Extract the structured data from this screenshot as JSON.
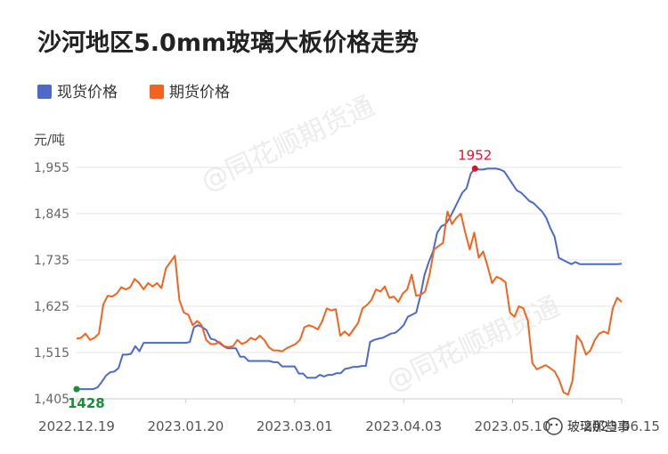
{
  "watermark": "@同花顺期货通",
  "brand": "玻璃那些事",
  "chart_data": {
    "type": "line",
    "title": "沙河地区5.0mm玻璃大板价格走势",
    "ylabel": "元/吨",
    "ylim": [
      1405,
      1955
    ],
    "yticks": [
      "1,955",
      "1,845",
      "1,735",
      "1,625",
      "1,515",
      "1,405"
    ],
    "ytick_values": [
      1955,
      1845,
      1735,
      1625,
      1515,
      1405
    ],
    "xticks": [
      "2022.12.19",
      "2023.01.20",
      "2023.03.01",
      "2023.04.03",
      "2023.05.10",
      "2023.06.15"
    ],
    "grid": true,
    "legend": "top-left",
    "series": [
      {
        "name": "现货价格",
        "color": "#4e6ac8",
        "values": [
          1428,
          1428,
          1428,
          1428,
          1428,
          1432,
          1445,
          1460,
          1468,
          1470,
          1478,
          1510,
          1510,
          1512,
          1530,
          1518,
          1538,
          1538,
          1538,
          1538,
          1538,
          1538,
          1538,
          1538,
          1538,
          1538,
          1538,
          1540,
          1575,
          1580,
          1575,
          1568,
          1548,
          1545,
          1538,
          1530,
          1525,
          1525,
          1525,
          1505,
          1505,
          1495,
          1495,
          1495,
          1495,
          1495,
          1495,
          1492,
          1492,
          1482,
          1482,
          1482,
          1482,
          1465,
          1465,
          1455,
          1455,
          1455,
          1462,
          1458,
          1462,
          1462,
          1466,
          1466,
          1476,
          1478,
          1481,
          1481,
          1483,
          1483,
          1540,
          1545,
          1548,
          1550,
          1555,
          1560,
          1562,
          1570,
          1580,
          1600,
          1605,
          1610,
          1650,
          1700,
          1730,
          1755,
          1800,
          1815,
          1820,
          1835,
          1855,
          1875,
          1895,
          1905,
          1940,
          1952,
          1950,
          1950,
          1952,
          1952,
          1952,
          1950,
          1945,
          1930,
          1915,
          1900,
          1895,
          1885,
          1875,
          1870,
          1860,
          1850,
          1835,
          1810,
          1790,
          1740,
          1735,
          1730,
          1725,
          1730,
          1725,
          1725,
          1725,
          1725,
          1725,
          1725,
          1725,
          1725,
          1725,
          1725,
          1726
        ]
      },
      {
        "name": "期货价格",
        "color": "#f2641e",
        "values": [
          1548,
          1550,
          1560,
          1545,
          1550,
          1560,
          1630,
          1650,
          1648,
          1655,
          1670,
          1665,
          1670,
          1690,
          1680,
          1665,
          1680,
          1672,
          1680,
          1668,
          1715,
          1730,
          1745,
          1640,
          1610,
          1605,
          1580,
          1590,
          1580,
          1545,
          1535,
          1535,
          1540,
          1530,
          1528,
          1530,
          1545,
          1535,
          1540,
          1550,
          1545,
          1555,
          1545,
          1528,
          1520,
          1520,
          1518,
          1525,
          1530,
          1535,
          1545,
          1575,
          1580,
          1576,
          1570,
          1590,
          1620,
          1615,
          1618,
          1555,
          1565,
          1555,
          1570,
          1585,
          1620,
          1628,
          1640,
          1665,
          1660,
          1672,
          1645,
          1648,
          1635,
          1655,
          1665,
          1700,
          1650,
          1652,
          1660,
          1700,
          1760,
          1768,
          1775,
          1850,
          1820,
          1835,
          1845,
          1800,
          1760,
          1800,
          1740,
          1755,
          1720,
          1680,
          1695,
          1690,
          1682,
          1610,
          1600,
          1625,
          1620,
          1590,
          1490,
          1475,
          1480,
          1485,
          1478,
          1470,
          1450,
          1420,
          1415,
          1448,
          1555,
          1540,
          1510,
          1520,
          1545,
          1560,
          1565,
          1560,
          1620,
          1645,
          1635
        ]
      }
    ],
    "annotations": [
      {
        "label": "1952",
        "series": "现货价格",
        "value": 1952
      },
      {
        "label": "1428",
        "series": "现货价格",
        "value": 1428
      }
    ]
  }
}
